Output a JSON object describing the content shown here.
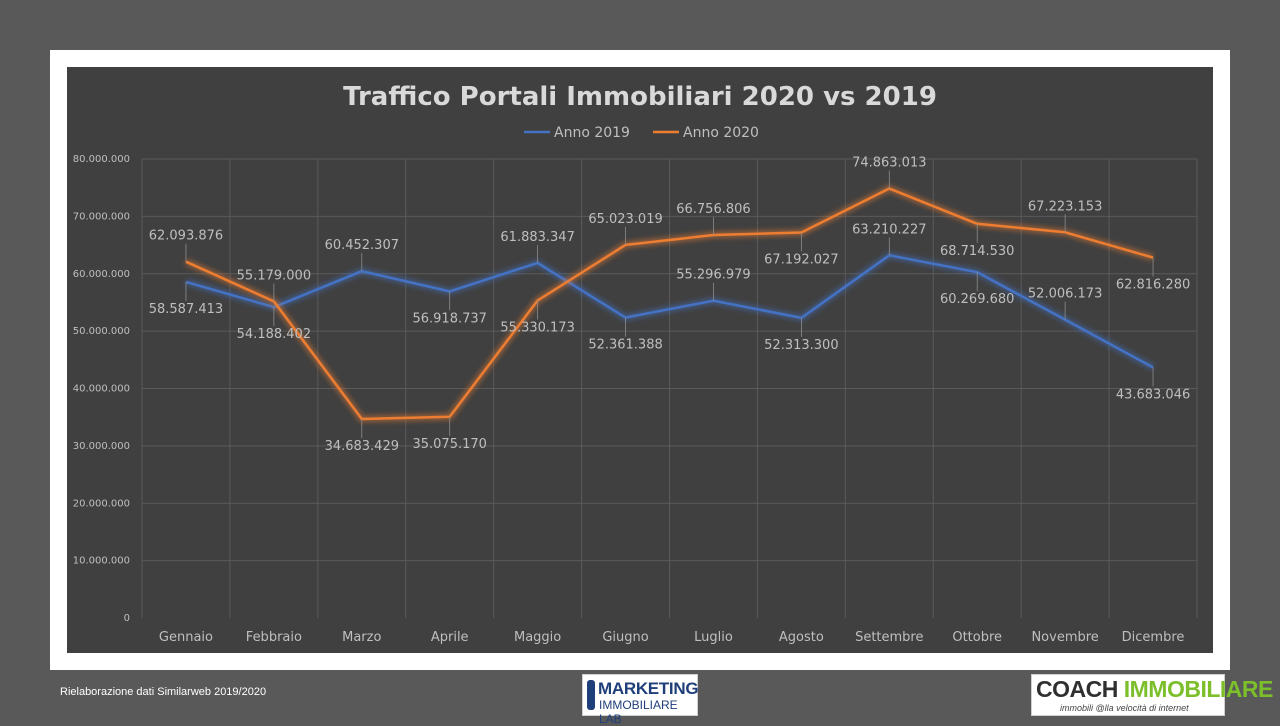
{
  "chart_data": {
    "type": "line",
    "title": "Traffico Portali Immobiliari 2020 vs 2019",
    "categories": [
      "Gennaio",
      "Febbraio",
      "Marzo",
      "Aprile",
      "Maggio",
      "Giugno",
      "Luglio",
      "Agosto",
      "Settembre",
      "Ottobre",
      "Novembre",
      "Dicembre"
    ],
    "ylim": [
      0,
      80000000
    ],
    "yticks": [
      "0",
      "10.000.000",
      "20.000.000",
      "30.000.000",
      "40.000.000",
      "50.000.000",
      "60.000.000",
      "70.000.000",
      "80.000.000"
    ],
    "grid": true,
    "legend_position": "top",
    "series": [
      {
        "name": "Anno 2019",
        "color": "#4472c4",
        "values": [
          58587413,
          54188402,
          60452307,
          56918737,
          61883347,
          52361388,
          55296979,
          52313300,
          63210227,
          60269680,
          52006173,
          43683046
        ],
        "labels": [
          "58.587.413",
          "54.188.402",
          "60.452.307",
          "56.918.737",
          "61.883.347",
          "52.361.388",
          "55.296.979",
          "52.313.300",
          "63.210.227",
          "60.269.680",
          "52.006.173",
          "43.683.046"
        ]
      },
      {
        "name": "Anno 2020",
        "color": "#ed7d31",
        "values": [
          62093876,
          55179000,
          34683429,
          35075170,
          55330173,
          65023019,
          66756806,
          67192027,
          74863013,
          68714530,
          67223153,
          62816280
        ],
        "labels": [
          "62.093.876",
          "55.179.000",
          "34.683.429",
          "35.075.170",
          "55.330.173",
          "65.023.019",
          "66.756.806",
          "67.192.027",
          "74.863.013",
          "68.714.530",
          "67.223.153",
          "62.816.280"
        ]
      }
    ]
  },
  "footer": {
    "source_note": "Rielaborazione dati Similarweb 2019/2020"
  },
  "logos": {
    "marketing_top": "MARKETING",
    "marketing_bottom": "IMMOBILIARE LAB",
    "coach_a": "COACH ",
    "coach_b": "IMMOBILIARE",
    "coach_tagline": "immobili @lla velocità di internet"
  }
}
